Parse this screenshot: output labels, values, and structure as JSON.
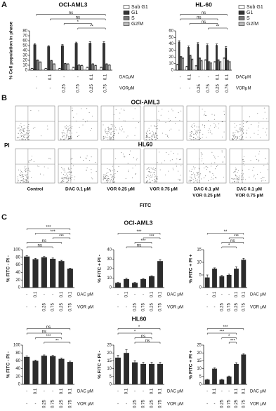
{
  "panels": {
    "a": "A",
    "b": "B",
    "c": "C"
  },
  "chart_data": [
    {
      "type": "bar",
      "title": "OCI-AML3",
      "y_label": "% Cell population in phase",
      "row_labels": [
        "DACμM",
        "VORμM"
      ],
      "dac": [
        "-",
        "0.1",
        "-",
        "-",
        "0.1",
        "0.1"
      ],
      "vor": [
        "-",
        "-",
        "0.25",
        "0.75",
        "0.25",
        "0.75"
      ],
      "series": [
        {
          "name": "Sub G1",
          "color": "#ffffff",
          "values": [
            3,
            3,
            3,
            5,
            5,
            5
          ],
          "errors": [
            1,
            1,
            1,
            1,
            1,
            1
          ]
        },
        {
          "name": "G1",
          "color": "#333333",
          "values": [
            52,
            48,
            50,
            55,
            55,
            55
          ],
          "errors": [
            2,
            2,
            2,
            2,
            3,
            3
          ]
        },
        {
          "name": "S",
          "color": "#777777",
          "values": [
            20,
            19,
            13,
            10,
            12,
            12
          ],
          "errors": [
            1,
            1,
            1,
            1,
            1,
            1
          ]
        },
        {
          "name": "G2/M",
          "color": "#bbbbbb",
          "values": [
            16,
            12,
            12,
            9,
            9,
            10
          ],
          "errors": [
            1,
            1,
            1,
            1,
            1,
            1
          ]
        }
      ],
      "ylim": [
        0,
        80
      ],
      "yticks": [
        0,
        10,
        20,
        30,
        40,
        50,
        60,
        70,
        80
      ],
      "annotations": [
        "ns",
        "ns",
        "*",
        "**"
      ]
    },
    {
      "type": "bar",
      "title": "HL-60",
      "row_labels": [
        "DACμM",
        "VORμM"
      ],
      "dac": [
        "-",
        "0.1",
        "-",
        "-",
        "0.1",
        "0.1"
      ],
      "vor": [
        "-",
        "-",
        "0.25",
        "0.75",
        "0.25",
        "0.75"
      ],
      "series": [
        {
          "name": "Sub G1",
          "color": "#ffffff",
          "values": [
            8,
            5,
            6,
            15,
            12,
            18
          ],
          "errors": [
            1,
            1,
            1,
            1,
            1,
            1
          ]
        },
        {
          "name": "G1",
          "color": "#333333",
          "values": [
            43,
            35,
            40,
            38,
            38,
            34
          ],
          "errors": [
            2,
            2,
            2,
            2,
            2,
            2
          ]
        },
        {
          "name": "S",
          "color": "#777777",
          "values": [
            20,
            22,
            18,
            12,
            15,
            14
          ],
          "errors": [
            1,
            1,
            1,
            1,
            1,
            1
          ]
        },
        {
          "name": "G2/M",
          "color": "#bbbbbb",
          "values": [
            18,
            16,
            14,
            10,
            12,
            12
          ],
          "errors": [
            1,
            1,
            1,
            1,
            1,
            1
          ]
        }
      ],
      "ylim": [
        0,
        60
      ],
      "yticks": [
        0,
        10,
        20,
        30,
        40,
        50,
        60
      ],
      "annotations": [
        "ns",
        "ns",
        "ns",
        "**"
      ]
    },
    {
      "type": "bar",
      "title": "OCI-AML3",
      "y_label": "% FITC - PI -",
      "color": "#2b2b2b",
      "row_labels": [
        "DAC μM",
        "VOR μM"
      ],
      "dac": [
        "-",
        "0.1",
        "-",
        "-",
        "0.1",
        "0.1"
      ],
      "vor": [
        "-",
        "-",
        "0.25",
        "0.75",
        "0.25",
        "0.75"
      ],
      "values": [
        82,
        75,
        80,
        76,
        70,
        50
      ],
      "errors": [
        2,
        2,
        2,
        2,
        2,
        1
      ],
      "ylim": [
        0,
        100
      ],
      "yticks": [
        0,
        20,
        40,
        60,
        80,
        100
      ],
      "annotations": [
        "***",
        "***",
        "***",
        "ns",
        "ns"
      ]
    },
    {
      "type": "bar",
      "y_label": "% FITC + PI -",
      "color": "#2b2b2b",
      "row_labels": [
        "DAC μM",
        "VOR μM"
      ],
      "dac": [
        "-",
        "0.1",
        "-",
        "-",
        "0.1",
        "0.1"
      ],
      "vor": [
        "-",
        "-",
        "0.25",
        "0.75",
        "0.25",
        "0.75"
      ],
      "values": [
        5,
        9,
        5,
        9,
        12,
        28
      ],
      "errors": [
        0.5,
        1,
        0.5,
        0.5,
        0.5,
        1.5
      ],
      "ylim": [
        0,
        40
      ],
      "yticks": [
        0,
        10,
        20,
        30,
        40
      ],
      "annotations": [
        "***",
        "***",
        "***",
        "ns"
      ]
    },
    {
      "type": "bar",
      "y_label": "% FITC + PI +",
      "color": "#2b2b2b",
      "row_labels": [
        "DAC μM",
        "VOR μM"
      ],
      "dac": [
        "-",
        "0.1",
        "-",
        "-",
        "0.1",
        "0.1"
      ],
      "vor": [
        "-",
        "-",
        "0.25",
        "0.75",
        "0.25",
        "0.75"
      ],
      "values": [
        4,
        7.5,
        4.5,
        5,
        7.5,
        11
      ],
      "errors": [
        1,
        0.3,
        0.3,
        0.3,
        0.7,
        0.6
      ],
      "ylim": [
        0,
        15
      ],
      "yticks": [
        0,
        5,
        10,
        15
      ],
      "annotations": [
        "**",
        "***",
        "ns",
        "*"
      ]
    },
    {
      "type": "bar",
      "y_label": "% FITC - PI -",
      "color": "#2b2b2b",
      "row_labels": [
        "DAC μM",
        "VOR μM"
      ],
      "dac": [
        "-",
        "0.1",
        "-",
        "-",
        "0.1",
        "0.1"
      ],
      "vor": [
        "-",
        "-",
        "0.25",
        "0.75",
        "0.25",
        "0.75"
      ],
      "values": [
        70,
        60,
        73,
        72,
        65,
        57
      ],
      "errors": [
        2,
        2,
        2,
        2,
        2,
        2
      ],
      "ylim": [
        0,
        100
      ],
      "yticks": [
        0,
        20,
        40,
        60,
        80,
        100
      ],
      "annotations": [
        "ns",
        "ns",
        "***",
        "**"
      ]
    },
    {
      "type": "bar",
      "title": "HL60",
      "y_label": "% FITC + PI -",
      "color": "#2b2b2b",
      "row_labels": [
        "DAC μM",
        "VOR μM"
      ],
      "dac": [
        "-",
        "0.1",
        "-",
        "-",
        "0.1",
        "0.1"
      ],
      "vor": [
        "-",
        "-",
        "0.25",
        "0.75",
        "0.25",
        "0.75"
      ],
      "values": [
        17,
        20,
        14,
        13,
        13,
        13
      ],
      "errors": [
        1.5,
        2,
        1,
        1,
        1,
        1
      ],
      "ylim": [
        0,
        25
      ],
      "yticks": [
        0,
        5,
        10,
        15,
        20,
        25
      ],
      "annotations": [
        "*",
        "*",
        "ns",
        "ns"
      ]
    },
    {
      "type": "bar",
      "y_label": "% FITC + PI +",
      "color": "#2b2b2b",
      "row_labels": [
        "DAC μM",
        "VOR μM"
      ],
      "dac": [
        "-",
        "0.1",
        "-",
        "-",
        "0.1",
        "0.1"
      ],
      "vor": [
        "-",
        "-",
        "0.25",
        "0.75",
        "0.25",
        "0.75"
      ],
      "values": [
        3,
        10,
        3,
        5,
        13,
        19
      ],
      "errors": [
        0.3,
        0.5,
        0.3,
        0.3,
        0.8,
        0.5
      ],
      "ylim": [
        0,
        25
      ],
      "yticks": [
        0,
        5,
        10,
        15,
        20,
        25
      ],
      "annotations": [
        "***",
        "***",
        "*",
        "***"
      ]
    }
  ],
  "flow": {
    "title_top": "OCI-AML3",
    "title_bottom": "HL60",
    "y_label": "PI",
    "x_label": "FITC",
    "conditions": [
      [
        "Control"
      ],
      [
        "DAC 0.1 µM"
      ],
      [
        "VOR 0.25 µM"
      ],
      [
        "VOR 0.75 µM"
      ],
      [
        "DAC 0.1 µM",
        "VOR 0.25 µM"
      ],
      [
        "DAC 0.1 µM",
        "VOR 0.75 µM"
      ]
    ]
  }
}
